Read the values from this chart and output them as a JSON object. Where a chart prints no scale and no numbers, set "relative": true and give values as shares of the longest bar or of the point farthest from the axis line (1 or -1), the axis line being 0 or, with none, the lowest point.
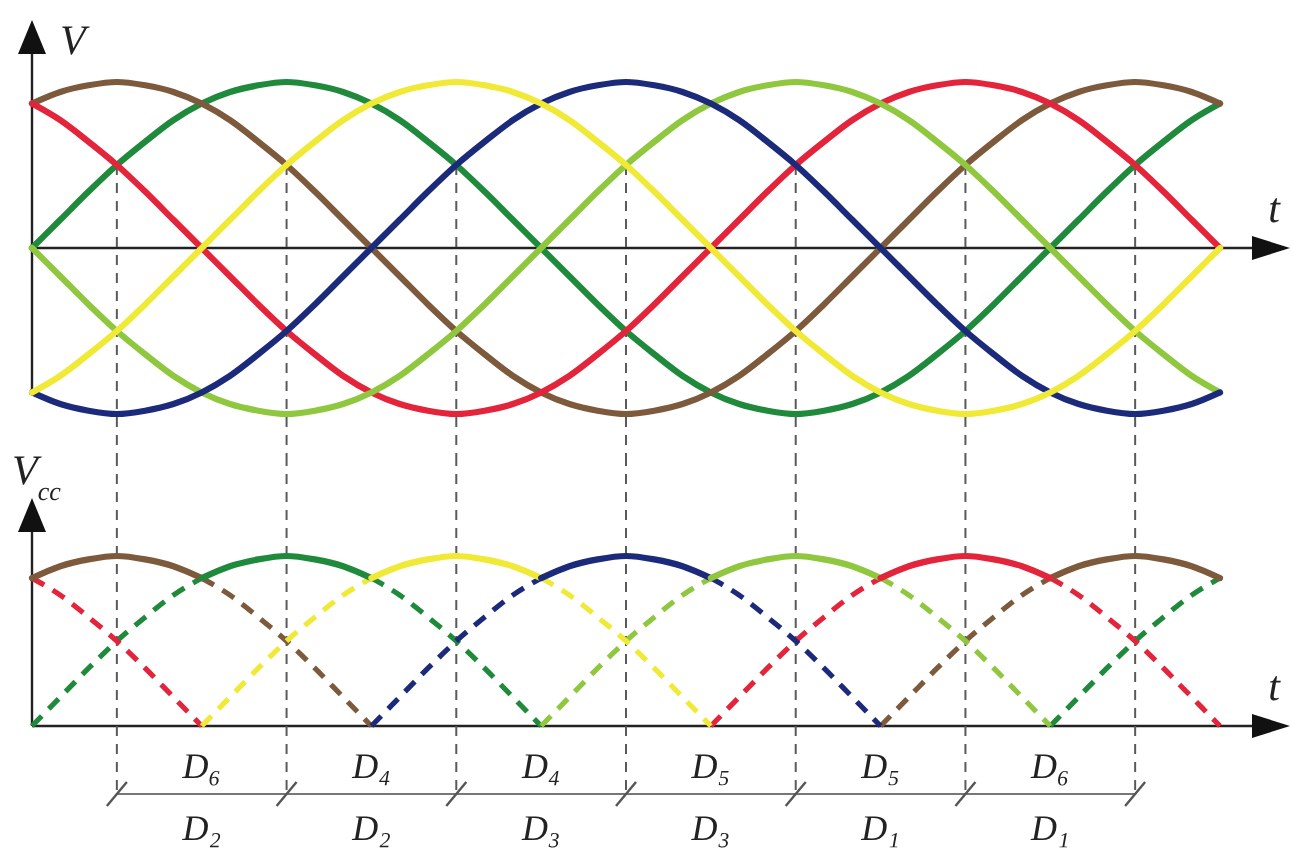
{
  "chart_data": [
    {
      "type": "line",
      "relative": true,
      "ylabel": "V",
      "xlabel": "t",
      "grid": "x",
      "categories": [
        null,
        null,
        null,
        null,
        null,
        null,
        null,
        null,
        null,
        null,
        null,
        null,
        null,
        null,
        null,
        null,
        null,
        null,
        null,
        null,
        null,
        null,
        null,
        null,
        null,
        null,
        null,
        null,
        null,
        null,
        null,
        null,
        null,
        null,
        null,
        null,
        null,
        null,
        null,
        null,
        null,
        null,
        null
      ],
      "series": [
        {
          "color": "#1f8a3c",
          "values": [
            0,
            0.17,
            0.34,
            0.5,
            0.64,
            0.77,
            0.87,
            0.94,
            0.98,
            1,
            0.98,
            0.94,
            0.87,
            0.77,
            0.64,
            0.5,
            0.34,
            0.17,
            0,
            -0.17,
            -0.34,
            -0.5,
            -0.64,
            -0.77,
            -0.87,
            -0.94,
            -0.98,
            -1,
            -0.98,
            -0.94,
            -0.87,
            -0.77,
            -0.64,
            -0.5,
            -0.34,
            -0.17,
            0,
            0.17,
            0.34,
            0.5,
            0.64,
            0.77,
            0.87
          ]
        },
        {
          "color": "#7d5a3c",
          "values": [
            0.87,
            0.94,
            0.98,
            1,
            0.98,
            0.94,
            0.87,
            0.77,
            0.64,
            0.5,
            0.34,
            0.17,
            0,
            -0.17,
            -0.34,
            -0.5,
            -0.64,
            -0.77,
            -0.87,
            -0.94,
            -0.98,
            -1,
            -0.98,
            -0.94,
            -0.87,
            -0.77,
            -0.64,
            -0.5,
            -0.34,
            -0.17,
            0,
            0.17,
            0.34,
            0.5,
            0.64,
            0.77,
            0.87,
            0.94,
            0.98,
            1,
            0.98,
            0.94,
            0.87
          ]
        },
        {
          "color": "#e3243b",
          "values": [
            0.87,
            0.77,
            0.64,
            0.5,
            0.34,
            0.17,
            0,
            -0.17,
            -0.34,
            -0.5,
            -0.64,
            -0.77,
            -0.87,
            -0.94,
            -0.98,
            -1,
            -0.98,
            -0.94,
            -0.87,
            -0.77,
            -0.64,
            -0.5,
            -0.34,
            -0.17,
            0,
            0.17,
            0.34,
            0.5,
            0.64,
            0.77,
            0.87,
            0.94,
            0.98,
            1,
            0.98,
            0.94,
            0.87,
            0.77,
            0.64,
            0.5,
            0.34,
            0.17,
            0
          ]
        },
        {
          "color": "#8fc73e",
          "values": [
            0,
            -0.17,
            -0.34,
            -0.5,
            -0.64,
            -0.77,
            -0.87,
            -0.94,
            -0.98,
            -1,
            -0.98,
            -0.94,
            -0.87,
            -0.77,
            -0.64,
            -0.5,
            -0.34,
            -0.17,
            0,
            0.17,
            0.34,
            0.5,
            0.64,
            0.77,
            0.87,
            0.94,
            0.98,
            1,
            0.98,
            0.94,
            0.87,
            0.77,
            0.64,
            0.5,
            0.34,
            0.17,
            0,
            -0.17,
            -0.34,
            -0.5,
            -0.64,
            -0.77,
            -0.87
          ]
        },
        {
          "color": "#1b2a7a",
          "values": [
            -0.87,
            -0.94,
            -0.98,
            -1,
            -0.98,
            -0.94,
            -0.87,
            -0.77,
            -0.64,
            -0.5,
            -0.34,
            -0.17,
            0,
            0.17,
            0.34,
            0.5,
            0.64,
            0.77,
            0.87,
            0.94,
            0.98,
            1,
            0.98,
            0.94,
            0.87,
            0.77,
            0.64,
            0.5,
            0.34,
            0.17,
            0,
            -0.17,
            -0.34,
            -0.5,
            -0.64,
            -0.77,
            -0.87,
            -0.94,
            -0.98,
            -1,
            -0.98,
            -0.94,
            -0.87
          ]
        },
        {
          "color": "#f0e936",
          "values": [
            -0.87,
            -0.77,
            -0.64,
            -0.5,
            -0.34,
            -0.17,
            0,
            0.17,
            0.34,
            0.5,
            0.64,
            0.77,
            0.87,
            0.94,
            0.98,
            1,
            0.98,
            0.94,
            0.87,
            0.77,
            0.64,
            0.5,
            0.34,
            0.17,
            0,
            -0.17,
            -0.34,
            -0.5,
            -0.64,
            -0.77,
            -0.87,
            -0.94,
            -0.98,
            -1,
            -0.98,
            -0.94,
            -0.87,
            -0.77,
            -0.64,
            -0.5,
            -0.34,
            -0.17,
            0
          ]
        }
      ]
    },
    {
      "type": "line",
      "relative": true,
      "ylabel": "V$_{cc}$",
      "xlabel": "t",
      "grid": "x",
      "categories": [
        null,
        null,
        null,
        null,
        null,
        null,
        null,
        null,
        null,
        null,
        null,
        null,
        null,
        null,
        null,
        null,
        null,
        null,
        null,
        null,
        null,
        null,
        null,
        null,
        null,
        null,
        null,
        null,
        null,
        null,
        null,
        null,
        null,
        null,
        null,
        null,
        null,
        null,
        null,
        null,
        null,
        null,
        null
      ],
      "series": [
        {
          "color": "#1f8a3c",
          "line_style": "dashed",
          "values": [
            0,
            0.17,
            0.34,
            0.5,
            0.64,
            0.77,
            0.87,
            null,
            null,
            null,
            null,
            null,
            0.87,
            0.77,
            0.64,
            0.5,
            0.34,
            0.17,
            0,
            null,
            null,
            null,
            null,
            null,
            null,
            null,
            null,
            null,
            null,
            null,
            null,
            null,
            null,
            null,
            null,
            null,
            0,
            0.17,
            0.34,
            0.5,
            0.64,
            0.77,
            0.87
          ]
        },
        {
          "color": "#7d5a3c",
          "line_style": "dashed",
          "values": [
            null,
            null,
            null,
            null,
            null,
            null,
            0.87,
            0.77,
            0.64,
            0.5,
            0.34,
            0.17,
            0,
            null,
            null,
            null,
            null,
            null,
            null,
            null,
            null,
            null,
            null,
            null,
            null,
            null,
            null,
            null,
            null,
            null,
            0,
            0.17,
            0.34,
            0.5,
            0.64,
            0.77,
            0.87,
            null,
            null,
            null,
            null,
            null,
            null
          ]
        },
        {
          "color": "#e3243b",
          "line_style": "dashed",
          "values": [
            0.87,
            0.77,
            0.64,
            0.5,
            0.34,
            0.17,
            0,
            null,
            null,
            null,
            null,
            null,
            null,
            null,
            null,
            null,
            null,
            null,
            null,
            null,
            null,
            null,
            null,
            null,
            0,
            0.17,
            0.34,
            0.5,
            0.64,
            0.77,
            0.87,
            null,
            null,
            null,
            null,
            null,
            0.87,
            0.77,
            0.64,
            0.5,
            0.34,
            0.17,
            0
          ]
        },
        {
          "color": "#8fc73e",
          "line_style": "dashed",
          "values": [
            null,
            null,
            null,
            null,
            null,
            null,
            null,
            null,
            null,
            null,
            null,
            null,
            null,
            null,
            null,
            null,
            null,
            null,
            0,
            0.17,
            0.34,
            0.5,
            0.64,
            0.77,
            0.87,
            null,
            null,
            null,
            null,
            null,
            0.87,
            0.77,
            0.64,
            0.5,
            0.34,
            0.17,
            0,
            null,
            null,
            null,
            null,
            null,
            null
          ]
        },
        {
          "color": "#1b2a7a",
          "line_style": "dashed",
          "values": [
            null,
            null,
            null,
            null,
            null,
            null,
            null,
            null,
            null,
            null,
            null,
            null,
            0,
            0.17,
            0.34,
            0.5,
            0.64,
            0.77,
            0.87,
            null,
            null,
            null,
            null,
            null,
            0.87,
            0.77,
            0.64,
            0.5,
            0.34,
            0.17,
            0,
            null,
            null,
            null,
            null,
            null,
            null,
            null,
            null,
            null,
            null,
            null,
            null
          ]
        },
        {
          "color": "#f0e936",
          "line_style": "dashed",
          "values": [
            null,
            null,
            null,
            null,
            null,
            null,
            0,
            0.17,
            0.34,
            0.5,
            0.64,
            0.77,
            0.87,
            null,
            null,
            null,
            null,
            null,
            0.87,
            0.77,
            0.64,
            0.5,
            0.34,
            0.17,
            0,
            null,
            null,
            null,
            null,
            null,
            null,
            null,
            null,
            null,
            null,
            null,
            null,
            null,
            null,
            null,
            null,
            null,
            null
          ]
        },
        {
          "color": "#7d5a3c",
          "line_style": "solid",
          "values": [
            0.87,
            0.94,
            0.98,
            1,
            0.98,
            0.94,
            0.87,
            null,
            null,
            null,
            null,
            null,
            null,
            null,
            null,
            null,
            null,
            null,
            null,
            null,
            null,
            null,
            null,
            null,
            null,
            null,
            null,
            null,
            null,
            null,
            null,
            null,
            null,
            null,
            null,
            null,
            0.87,
            0.94,
            0.98,
            1,
            0.98,
            0.94,
            0.87
          ]
        },
        {
          "color": "#1f8a3c",
          "line_style": "solid",
          "values": [
            null,
            null,
            null,
            null,
            null,
            null,
            0.87,
            0.94,
            0.98,
            1,
            0.98,
            0.94,
            0.87,
            null,
            null,
            null,
            null,
            null,
            null,
            null,
            null,
            null,
            null,
            null,
            null,
            null,
            null,
            null,
            null,
            null,
            null,
            null,
            null,
            null,
            null,
            null,
            null,
            null,
            null,
            null,
            null,
            null,
            null
          ]
        },
        {
          "color": "#f0e936",
          "line_style": "solid",
          "values": [
            null,
            null,
            null,
            null,
            null,
            null,
            null,
            null,
            null,
            null,
            null,
            null,
            0.87,
            0.94,
            0.98,
            1,
            0.98,
            0.94,
            0.87,
            null,
            null,
            null,
            null,
            null,
            null,
            null,
            null,
            null,
            null,
            null,
            null,
            null,
            null,
            null,
            null,
            null,
            null,
            null,
            null,
            null,
            null,
            null,
            null
          ]
        },
        {
          "color": "#1b2a7a",
          "line_style": "solid",
          "values": [
            null,
            null,
            null,
            null,
            null,
            null,
            null,
            null,
            null,
            null,
            null,
            null,
            null,
            null,
            null,
            null,
            null,
            null,
            0.87,
            0.94,
            0.98,
            1,
            0.98,
            0.94,
            0.87,
            null,
            null,
            null,
            null,
            null,
            null,
            null,
            null,
            null,
            null,
            null,
            null,
            null,
            null,
            null,
            null,
            null,
            null
          ]
        },
        {
          "color": "#8fc73e",
          "line_style": "solid",
          "values": [
            null,
            null,
            null,
            null,
            null,
            null,
            null,
            null,
            null,
            null,
            null,
            null,
            null,
            null,
            null,
            null,
            null,
            null,
            null,
            null,
            null,
            null,
            null,
            null,
            0.87,
            0.94,
            0.98,
            1,
            0.98,
            0.94,
            0.87,
            null,
            null,
            null,
            null,
            null,
            null,
            null,
            null,
            null,
            null,
            null,
            null
          ]
        },
        {
          "color": "#e3243b",
          "line_style": "solid",
          "values": [
            null,
            null,
            null,
            null,
            null,
            null,
            null,
            null,
            null,
            null,
            null,
            null,
            null,
            null,
            null,
            null,
            null,
            null,
            null,
            null,
            null,
            null,
            null,
            null,
            null,
            null,
            null,
            null,
            null,
            null,
            0.87,
            0.94,
            0.98,
            1,
            0.98,
            0.94,
            0.87,
            null,
            null,
            null,
            null,
            null,
            null
          ]
        }
      ],
      "annotations": [
        "D₆",
        "D₄",
        "D₄",
        "D₅",
        "D₅",
        "D₆",
        "D₂",
        "D₂",
        "D₃",
        "D₃",
        "D₁",
        "D₁"
      ]
    }
  ]
}
